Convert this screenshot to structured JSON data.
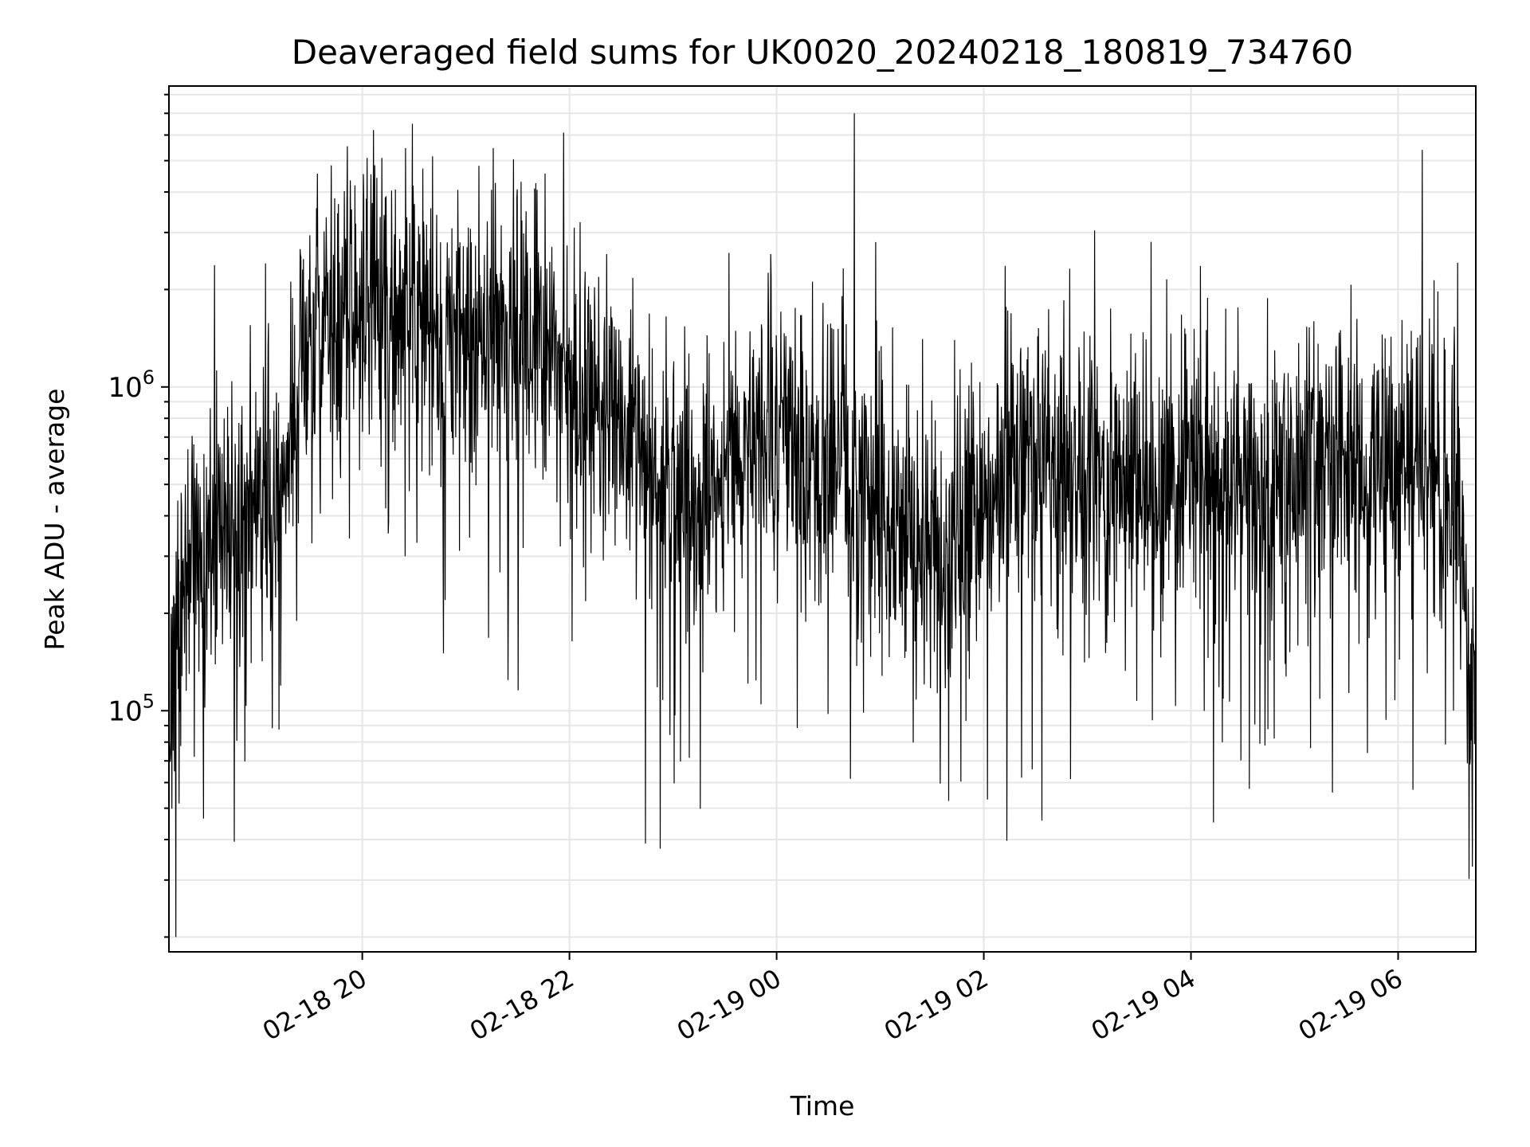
{
  "chart_data": {
    "type": "line",
    "title": "Deaveraged field sums for UK0020_20240218_180819_734760",
    "xlabel": "Time",
    "ylabel": "Peak ADU - average",
    "yscale": "log",
    "ylim": [
      18000,
      8500000
    ],
    "xlim": [
      "2024-02-18 18:08",
      "2024-02-19 06:45"
    ],
    "grid": true,
    "x_ticks": [
      {
        "t": "2024-02-18 20:00",
        "label": "02-18 20"
      },
      {
        "t": "2024-02-18 22:00",
        "label": "02-18 22"
      },
      {
        "t": "2024-02-19 00:00",
        "label": "02-19 00"
      },
      {
        "t": "2024-02-19 02:00",
        "label": "02-19 02"
      },
      {
        "t": "2024-02-19 04:00",
        "label": "02-19 04"
      },
      {
        "t": "2024-02-19 06:00",
        "label": "02-19 06"
      }
    ],
    "y_ticks": [
      {
        "value": 100000,
        "base": "10",
        "exp": "5"
      },
      {
        "value": 1000000,
        "base": "10",
        "exp": "6"
      }
    ],
    "series": [
      {
        "color": "#000000",
        "x": [
          "2024-02-18 18:08",
          "2024-02-18 18:15",
          "2024-02-18 18:25",
          "2024-02-18 18:35",
          "2024-02-18 18:45",
          "2024-02-18 18:55",
          "2024-02-18 19:05",
          "2024-02-18 19:15",
          "2024-02-18 19:25",
          "2024-02-18 19:35",
          "2024-02-18 19:45",
          "2024-02-18 19:55",
          "2024-02-18 20:05",
          "2024-02-18 20:15",
          "2024-02-18 20:25",
          "2024-02-18 20:35",
          "2024-02-18 20:45",
          "2024-02-18 20:55",
          "2024-02-18 21:05",
          "2024-02-18 21:15",
          "2024-02-18 21:25",
          "2024-02-18 21:35",
          "2024-02-18 21:45",
          "2024-02-18 21:55",
          "2024-02-18 22:05",
          "2024-02-18 22:15",
          "2024-02-18 22:25",
          "2024-02-18 22:35",
          "2024-02-18 22:45",
          "2024-02-18 22:55",
          "2024-02-18 23:05",
          "2024-02-18 23:15",
          "2024-02-18 23:25",
          "2024-02-18 23:35",
          "2024-02-18 23:45",
          "2024-02-18 23:55",
          "2024-02-19 00:05",
          "2024-02-19 00:15",
          "2024-02-19 00:25",
          "2024-02-19 00:35",
          "2024-02-19 00:45",
          "2024-02-19 00:55",
          "2024-02-19 01:05",
          "2024-02-19 01:15",
          "2024-02-19 01:25",
          "2024-02-19 01:35",
          "2024-02-19 01:45",
          "2024-02-19 01:55",
          "2024-02-19 02:05",
          "2024-02-19 02:15",
          "2024-02-19 02:25",
          "2024-02-19 02:35",
          "2024-02-19 02:45",
          "2024-02-19 02:55",
          "2024-02-19 03:05",
          "2024-02-19 03:15",
          "2024-02-19 03:25",
          "2024-02-19 03:35",
          "2024-02-19 03:45",
          "2024-02-19 03:55",
          "2024-02-19 04:05",
          "2024-02-19 04:15",
          "2024-02-19 04:25",
          "2024-02-19 04:35",
          "2024-02-19 04:45",
          "2024-02-19 04:55",
          "2024-02-19 05:05",
          "2024-02-19 05:15",
          "2024-02-19 05:25",
          "2024-02-19 05:35",
          "2024-02-19 05:45",
          "2024-02-19 05:55",
          "2024-02-19 06:05",
          "2024-02-19 06:15",
          "2024-02-19 06:25",
          "2024-02-19 06:35",
          "2024-02-19 06:45"
        ],
        "y": [
          100000,
          200000,
          280000,
          300000,
          320000,
          350000,
          380000,
          500000,
          1200000,
          1600000,
          1500000,
          1800000,
          1700000,
          1600000,
          1700000,
          1500000,
          1400000,
          1500000,
          1600000,
          1400000,
          1300000,
          1500000,
          1400000,
          1300000,
          1000000,
          900000,
          800000,
          700000,
          600000,
          500000,
          500000,
          450000,
          500000,
          600000,
          700000,
          700000,
          700000,
          600000,
          550000,
          600000,
          550000,
          500000,
          400000,
          350000,
          300000,
          300000,
          300000,
          400000,
          500000,
          600000,
          600000,
          550000,
          500000,
          500000,
          500000,
          500000,
          500000,
          500000,
          500000,
          500000,
          500000,
          500000,
          450000,
          450000,
          500000,
          550000,
          550000,
          550000,
          550000,
          600000,
          600000,
          600000,
          550000,
          550000,
          500000,
          400000,
          100000
        ],
        "points_in_trace": 3100
      }
    ],
    "notable_peaks": [
      {
        "x": "2024-02-18 20:29",
        "y": 6500000
      },
      {
        "x": "2024-02-19 00:45",
        "y": 7000000
      },
      {
        "x": "2024-02-19 06:14",
        "y": 5400000
      }
    ],
    "notable_minima": [
      {
        "x": "2024-02-18 18:12",
        "y": 20000
      },
      {
        "x": "2024-02-19 06:43",
        "y": 33000
      }
    ]
  }
}
